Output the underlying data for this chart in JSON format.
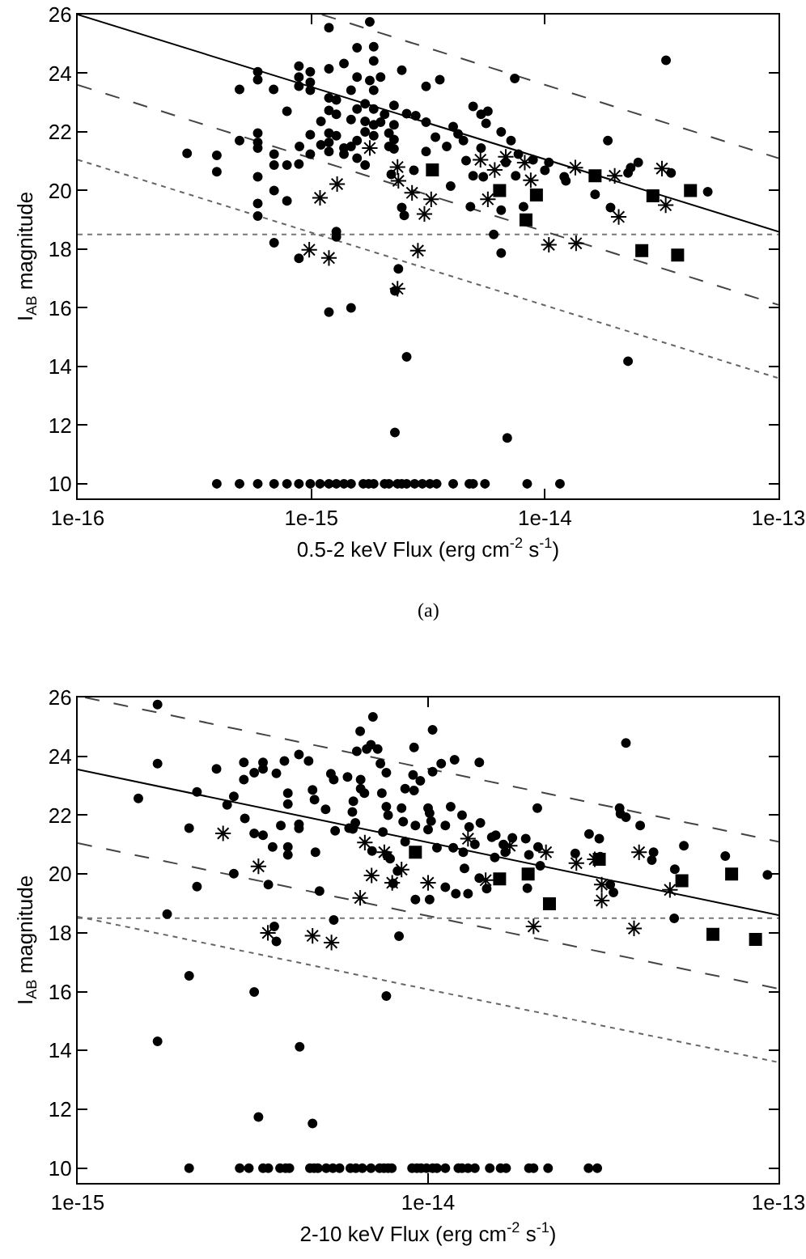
{
  "chart_data": [
    {
      "type": "scatter",
      "xlabel": "0.5-2 keV Flux (erg cm$^{-2}$ s$^{-1}$)",
      "ylabel": "I$_{AB}$ magnitude",
      "annotations": [
        "(a)"
      ],
      "log": "x",
      "xlim": [
        1e-16,
        1e-13
      ],
      "xticks": [
        {
          "value": 1e-16,
          "label": "1e-16"
        },
        {
          "value": 1e-15,
          "label": "1e-15"
        },
        {
          "value": 1e-14,
          "label": "1e-14"
        },
        {
          "value": 1e-13,
          "label": "1e-13"
        }
      ],
      "ylim": [
        9.5,
        26
      ],
      "yticks": [
        10,
        12,
        14,
        16,
        18,
        20,
        22,
        24,
        26
      ],
      "ref_lines": [
        {
          "axis": "y",
          "value": 18.5,
          "line_style": "dotted",
          "color": "#777777"
        }
      ],
      "series": [
        {
          "type": "scatter",
          "marker": "circle",
          "color": "#000000",
          "x": [
            2.94e-16,
            3.94e-16,
            3.94e-16,
            4.93e-16,
            4.93e-16,
            5.9e-16,
            5.9e-16,
            5.9e-16,
            5.9e-16,
            5.9e-16,
            5.9e-16,
            5.9e-16,
            5.9e-16,
            6.93e-16,
            6.93e-16,
            6.93e-16,
            6.93e-16,
            7.87e-16,
            7.87e-16,
            7.87e-16,
            8.85e-16,
            8.85e-16,
            8.85e-16,
            8.85e-16,
            8.85e-16,
            9.9e-16,
            9.9e-16,
            9.9e-16,
            9.9e-16,
            9.9e-16,
            1.1e-15,
            1.1e-15,
            1.19e-15,
            1.19e-15,
            1.19e-15,
            1.19e-15,
            1.19e-15,
            1.19e-15,
            1.19e-15,
            1.28e-15,
            1.28e-15,
            1.28e-15,
            1.28e-15,
            1.28e-15,
            1.38e-15,
            1.38e-15,
            1.38e-15,
            1.48e-15,
            1.48e-15,
            1.48e-15,
            1.48e-15,
            1.57e-15,
            1.57e-15,
            1.57e-15,
            1.57e-15,
            1.7e-15,
            1.7e-15,
            1.7e-15,
            1.7e-15,
            1.85e-15,
            1.85e-15,
            1.85e-15,
            1.85e-15,
            1.85e-15,
            1.85e-15,
            1.98e-15,
            1.98e-15,
            2.06e-15,
            2.15e-15,
            2.15e-15,
            2.26e-15,
            2.26e-15,
            2.26e-15,
            2.26e-15,
            2.2e-15,
            2.28e-15,
            2.36e-15,
            2.44e-15,
            2.44e-15,
            2.5e-15,
            2.56e-15,
            2.75e-15,
            2.8e-15,
            3.1e-15,
            3.1e-15,
            3.1e-15,
            3.4e-15,
            3.55e-15,
            3.8e-15,
            3.95e-15,
            4.05e-15,
            4.25e-15,
            4.48e-15,
            4.6e-15,
            4.93e-15,
            4.93e-15,
            4.8e-15,
            5.33e-15,
            5.33e-15,
            5.45e-15,
            5.6e-15,
            6.04e-15,
            5.7e-15,
            6.5e-15,
            6.5e-15,
            6.5e-15,
            6.8e-15,
            7.16e-15,
            7.5e-15,
            7.43e-15,
            7.7e-15,
            8.1e-15,
            8.9e-15,
            1e-14,
            1.04e-14,
            1.21e-14,
            1.23e-14,
            1.64e-14,
            1.86e-14,
            1.91e-14,
            2.27e-14,
            2.33e-14,
            2.51e-14,
            3.47e-14,
            4.98e-14,
            2.56e-15,
            2.28e-15,
            6.9e-15,
            2.27e-14,
            1.78e-15,
            6.9e-16,
            1.19e-15,
            1.78e-15,
            8.9e-16,
            1.57e-15,
            3.3e-14,
            3.94e-16,
            4.93e-16,
            5.9e-16,
            6.93e-16,
            7.87e-16,
            8.85e-16,
            9.9e-16,
            1.09e-15,
            1.19e-15,
            1.28e-15,
            1.38e-15,
            1.48e-15,
            1.67e-15,
            1.76e-15,
            1.85e-15,
            2.06e-15,
            2.15e-15,
            2.34e-15,
            2.44e-15,
            2.56e-15,
            2.77e-15,
            2.99e-15,
            3.22e-15,
            3.44e-15,
            4.05e-15,
            4.75e-15,
            4.93e-15,
            5.54e-15,
            8.4e-15,
            1.16e-14
          ],
          "values": [
            21.27,
            21.2,
            20.64,
            23.45,
            21.7,
            24.05,
            23.78,
            21.96,
            21.64,
            21.45,
            20.47,
            19.56,
            19.13,
            20.87,
            21.24,
            20.0,
            18.22,
            22.7,
            20.87,
            19.65,
            24.24,
            23.87,
            23.56,
            20.9,
            17.69,
            24.05,
            23.69,
            23.42,
            21.9,
            21.24,
            21.56,
            22.36,
            25.55,
            24.15,
            22.73,
            21.96,
            21.64,
            21.33,
            15.85,
            23.09,
            22.6,
            21.87,
            18.6,
            18.42,
            24.33,
            21.45,
            21.24,
            23.42,
            22.42,
            21.5,
            16.0,
            24.87,
            23.87,
            22.78,
            21.7,
            22.96,
            22.36,
            22.0,
            20.87,
            24.9,
            24.42,
            23.42,
            22.78,
            22.24,
            21.87,
            23.87,
            22.33,
            22.6,
            21.5,
            21.96,
            22.9,
            22.24,
            21.74,
            21.42,
            20.55,
            16.58,
            17.33,
            24.1,
            19.42,
            19.15,
            22.62,
            20.69,
            22.55,
            23.55,
            22.33,
            21.33,
            21.82,
            23.78,
            21.5,
            20.15,
            22.18,
            21.93,
            21.7,
            21.02,
            22.87,
            20.5,
            19.45,
            22.6,
            21.45,
            20.47,
            22.29,
            18.5,
            22.7,
            17.87,
            19.33,
            22.0,
            20.96,
            21.7,
            20.5,
            23.82,
            21.24,
            19.45,
            21.05,
            20.69,
            20.96,
            20.47,
            20.33,
            19.87,
            21.7,
            19.42,
            20.6,
            20.78,
            20.96,
            20.6,
            19.96,
            14.33,
            11.75,
            11.56,
            14.18,
            25.75,
            23.45,
            23.16,
            23.75,
            21.5,
            21.1,
            24.44,
            10,
            10,
            10,
            10,
            10,
            10,
            10,
            10,
            10,
            10,
            10,
            10,
            10,
            10,
            10,
            10,
            10,
            10,
            10,
            10,
            10,
            10,
            10,
            10,
            10,
            10,
            10,
            10,
            10,
            10
          ]
        },
        {
          "type": "scatter",
          "marker": "cross",
          "color": "#000000",
          "x": [
            1.09e-15,
            1.29e-15,
            9.8e-16,
            1.19e-15,
            2.34e-15,
            2.36e-15,
            2.34e-15,
            2.7e-15,
            3.26e-15,
            3.05e-15,
            2.86e-15,
            1.78e-15,
            5.3e-15,
            6.1e-15,
            5.7e-15,
            6.8e-15,
            8.2e-15,
            8.7e-15,
            1.04e-14,
            1.35e-14,
            1.36e-14,
            1.99e-14,
            2.07e-14,
            3.17e-14,
            3.29e-14
          ],
          "values": [
            19.75,
            20.22,
            17.98,
            17.7,
            20.8,
            20.33,
            16.65,
            19.92,
            19.7,
            19.2,
            17.95,
            21.45,
            21.05,
            20.7,
            19.7,
            21.15,
            20.95,
            20.35,
            18.15,
            20.78,
            18.2,
            20.5,
            19.1,
            20.75,
            19.5
          ]
        },
        {
          "type": "scatter",
          "marker": "square",
          "color": "#000000",
          "x": [
            3.3e-15,
            6.4e-15,
            9.2e-15,
            8.3e-15,
            1.64e-14,
            2.9e-14,
            4.2e-14,
            2.6e-14,
            3.7e-14
          ],
          "values": [
            20.7,
            20.0,
            19.85,
            19.0,
            20.5,
            19.82,
            20.0,
            17.95,
            17.8
          ]
        },
        {
          "type": "line",
          "marker": "none",
          "line_style": "solid",
          "color": "#000000",
          "x": [
            1e-16,
            1e-13
          ],
          "values": [
            26,
            18.6
          ]
        },
        {
          "type": "line",
          "marker": "none",
          "line_style": "dashed",
          "color": "#444444",
          "x": [
            1.11e-15,
            1e-13
          ],
          "values": [
            26,
            21.1
          ]
        },
        {
          "type": "line",
          "marker": "none",
          "line_style": "dashed",
          "color": "#444444",
          "x": [
            1e-16,
            1e-13
          ],
          "values": [
            23.6,
            16.1
          ]
        },
        {
          "type": "line",
          "marker": "none",
          "line_style": "dotted",
          "color": "#666666",
          "x": [
            1e-16,
            1e-13
          ],
          "values": [
            21.05,
            13.6
          ]
        }
      ]
    },
    {
      "type": "scatter",
      "xlabel": "2-10 keV Flux (erg cm$^{-2}$ s$^{-1}$)",
      "ylabel": "I$_{AB}$ magnitude",
      "log": "x",
      "xlim": [
        1e-15,
        1e-13
      ],
      "xticks": [
        {
          "value": 1e-15,
          "label": "1e-15"
        },
        {
          "value": 1e-14,
          "label": "1e-14"
        },
        {
          "value": 1e-13,
          "label": "1e-13"
        }
      ],
      "ylim": [
        9.5,
        26
      ],
      "yticks": [
        10,
        12,
        14,
        16,
        18,
        20,
        22,
        24,
        26
      ],
      "ref_lines": [
        {
          "axis": "y",
          "value": 18.5,
          "line_style": "dotted",
          "color": "#777777"
        }
      ],
      "series": [
        {
          "type": "scatter",
          "marker": "circle",
          "color": "#000000",
          "x": [
            1.49e-15,
            1.69e-15,
            1.8e-15,
            2.08e-15,
            2.19e-15,
            2.19e-15,
            2.49e-15,
            2.67e-15,
            2.79e-15,
            2.79e-15,
            2.98e-15,
            2.98e-15,
            3e-15,
            3.19e-15,
            3.38e-15,
            3.38e-15,
            3.38e-15,
            3.5e-15,
            3.6e-15,
            3.64e-15,
            3.69e-15,
            3.69e-15,
            3.89e-15,
            3.8e-15,
            3.98e-15,
            3.98e-15,
            3.98e-15,
            3.98e-15,
            4.28e-15,
            4.28e-15,
            4.28e-15,
            4.56e-15,
            4.68e-15,
            4.74e-15,
            4.77e-15,
            4.9e-15,
            5.1e-15,
            5.28e-15,
            5.38e-15,
            5.38e-15,
            5.43e-15,
            5.89e-15,
            5.95e-15,
            6.08e-15,
            6.12e-15,
            6.2e-15,
            6.26e-15,
            6.4e-15,
            6.42e-15,
            6.42e-15,
            6.58e-15,
            6.68e-15,
            6.87e-15,
            6.96e-15,
            6.92e-15,
            7.18e-15,
            7.31e-15,
            7.38e-15,
            7.43e-15,
            7.6e-15,
            7.6e-15,
            7.64e-15,
            7.69e-15,
            7.79e-15,
            7.95e-15,
            8.18e-15,
            8.26e-15,
            8.4e-15,
            8.49e-15,
            8.6e-15,
            9.06e-15,
            9.12e-15,
            9.12e-15,
            9.2e-15,
            9.2e-15,
            1e-14,
            1e-14,
            1.01e-14,
            1.01e-14,
            1.03e-14,
            1.02e-14,
            1.03e-14,
            1.06e-14,
            1.12e-14,
            1.12e-14,
            1.16e-14,
            1.19e-14,
            1.18e-14,
            1.2e-14,
            1.25e-14,
            1.26e-14,
            1.27e-14,
            1.3e-14,
            1.31e-14,
            1.4e-14,
            1.41e-14,
            1.36e-14,
            1.4e-14,
            1.47e-14,
            1.52e-14,
            1.55e-14,
            1.56e-14,
            1.64e-14,
            1.66e-14,
            1.74e-14,
            1.9e-14,
            1.92e-14,
            1.94e-14,
            2.05e-14,
            2.06e-14,
            2.09e-14,
            2.63e-14,
            2.88e-14,
            3.08e-14,
            3.1e-14,
            3.31e-14,
            3.38e-14,
            3.52e-14,
            3.54e-14,
            3.67e-14,
            4.03e-14,
            4.35e-14,
            4.4e-14,
            5.06e-14,
            5.04e-14,
            5.37e-14,
            7.05e-14,
            9.3e-14,
            1.69e-15,
            2.08e-15,
            3.19e-15,
            3.28e-15,
            4.3e-15,
            4.68e-15,
            7.6e-15,
            1.69e-15,
            3.19e-15,
            6.1e-15,
            8.6e-15,
            9.5e-15,
            1.09e-14,
            3.67e-14,
            2.08e-15,
            2.9e-15,
            3.08e-15,
            3.38e-15,
            3.5e-15,
            3.78e-15,
            3.92e-15,
            4.02e-15,
            4.6e-15,
            4.73e-15,
            4.85e-15,
            5.12e-15,
            5.35e-15,
            5.59e-15,
            6e-15,
            6.22e-15,
            6.49e-15,
            6.87e-15,
            7.27e-15,
            7.48e-15,
            7.69e-15,
            7.88e-15,
            9e-15,
            9.29e-15,
            9.55e-15,
            9.9e-15,
            1.03e-14,
            1.06e-14,
            1.12e-14,
            1.22e-14,
            1.25e-14,
            1.3e-14,
            1.36e-14,
            1.5e-14,
            1.61e-14,
            1.67e-14,
            1.94e-14,
            2e-14,
            2.2e-14,
            2.87e-14,
            3.04e-14
          ],
          "values": [
            22.57,
            23.75,
            18.64,
            21.56,
            22.79,
            19.57,
            23.57,
            22.35,
            22.64,
            20.01,
            23.21,
            23.79,
            21.89,
            21.38,
            21.32,
            23.79,
            23.57,
            19.64,
            20.92,
            18.22,
            17.71,
            23.42,
            23.84,
            21.65,
            22.75,
            22.38,
            20.92,
            20.65,
            24.06,
            21.69,
            21.55,
            23.84,
            22.86,
            22.53,
            20.74,
            19.42,
            22.2,
            23.41,
            18.44,
            23.21,
            21.47,
            23.3,
            21.56,
            22.11,
            22.47,
            21.74,
            24.17,
            24.85,
            23.21,
            22.9,
            22.75,
            24.25,
            24.39,
            25.34,
            20.78,
            24.25,
            23.75,
            22.75,
            21.43,
            23.44,
            22.29,
            20.63,
            22.0,
            20.52,
            19.68,
            20.1,
            17.89,
            22.24,
            21.78,
            22.9,
            23.37,
            24.3,
            22.84,
            19.13,
            21.65,
            21.51,
            22.24,
            19.13,
            22.07,
            23.48,
            21.8,
            24.9,
            20.89,
            19.55,
            21.65,
            22.29,
            23.88,
            20.89,
            19.33,
            22.0,
            20.74,
            20.19,
            19.33,
            21.6,
            23.79,
            21.74,
            21.01,
            19.86,
            19.5,
            21.25,
            20.56,
            21.32,
            21.0,
            20.74,
            21.23,
            21.2,
            19.52,
            20.65,
            22.24,
            20.92,
            20.28,
            20.7,
            21.36,
            21.2,
            20.59,
            19.64,
            19.37,
            22.24,
            22.05,
            21.93,
            21.65,
            20.47,
            20.74,
            20.16,
            18.49,
            20.96,
            20.61,
            19.97,
            14.31,
            16.54,
            15.99,
            11.74,
            14.13,
            11.52,
            15.85,
            25.76,
            23.44,
            21.53,
            21.1,
            23.17,
            23.75,
            24.45,
            10,
            10,
            10,
            10,
            10,
            10,
            10,
            10,
            10,
            10,
            10,
            10,
            10,
            10,
            10,
            10,
            10,
            10,
            10,
            10,
            10,
            10,
            10,
            10,
            10,
            10,
            10,
            10,
            10,
            10,
            10,
            10,
            10,
            10,
            10,
            10,
            10,
            10,
            10,
            10,
            10
          ]
        },
        {
          "type": "scatter",
          "marker": "cross",
          "color": "#000000",
          "x": [
            2.6e-15,
            3.28e-15,
            3.49e-15,
            4.68e-15,
            5.3e-15,
            6.4e-15,
            6.6e-15,
            6.9e-15,
            7.5e-15,
            7.9e-15,
            8.4e-15,
            1e-14,
            1.3e-14,
            1.46e-14,
            1.71e-14,
            2e-14,
            2.17e-14,
            2.65e-14,
            2.99e-14,
            3.13e-14,
            3.13e-14,
            3.87e-14,
            4e-14,
            4.9e-14
          ],
          "values": [
            21.38,
            20.26,
            18.0,
            17.9,
            17.67,
            19.19,
            21.07,
            19.95,
            20.74,
            19.7,
            20.15,
            19.7,
            21.2,
            19.79,
            20.96,
            18.22,
            20.74,
            20.37,
            20.5,
            19.64,
            19.1,
            18.15,
            20.74,
            19.46
          ]
        },
        {
          "type": "scatter",
          "marker": "square",
          "color": "#000000",
          "x": [
            9.2e-15,
            1.6e-14,
            1.93e-14,
            2.22e-14,
            3.08e-14,
            5.3e-14,
            7.35e-14,
            6.5e-14,
            8.6e-14
          ],
          "values": [
            20.74,
            19.83,
            20.0,
            18.99,
            20.5,
            19.77,
            20.0,
            17.95,
            17.78
          ]
        },
        {
          "type": "line",
          "marker": "none",
          "line_style": "solid",
          "color": "#000000",
          "x": [
            1e-15,
            1e-13
          ],
          "values": [
            23.55,
            18.6
          ]
        },
        {
          "type": "line",
          "marker": "none",
          "line_style": "dashed",
          "color": "#444444",
          "x": [
            1.05e-15,
            1e-13
          ],
          "values": [
            26,
            21.1
          ]
        },
        {
          "type": "line",
          "marker": "none",
          "line_style": "dashed",
          "color": "#444444",
          "x": [
            1e-15,
            1e-13
          ],
          "values": [
            21.05,
            16.1
          ]
        },
        {
          "type": "line",
          "marker": "none",
          "line_style": "dotted",
          "color": "#666666",
          "x": [
            1e-15,
            1e-13
          ],
          "values": [
            18.55,
            13.6
          ]
        }
      ]
    }
  ]
}
